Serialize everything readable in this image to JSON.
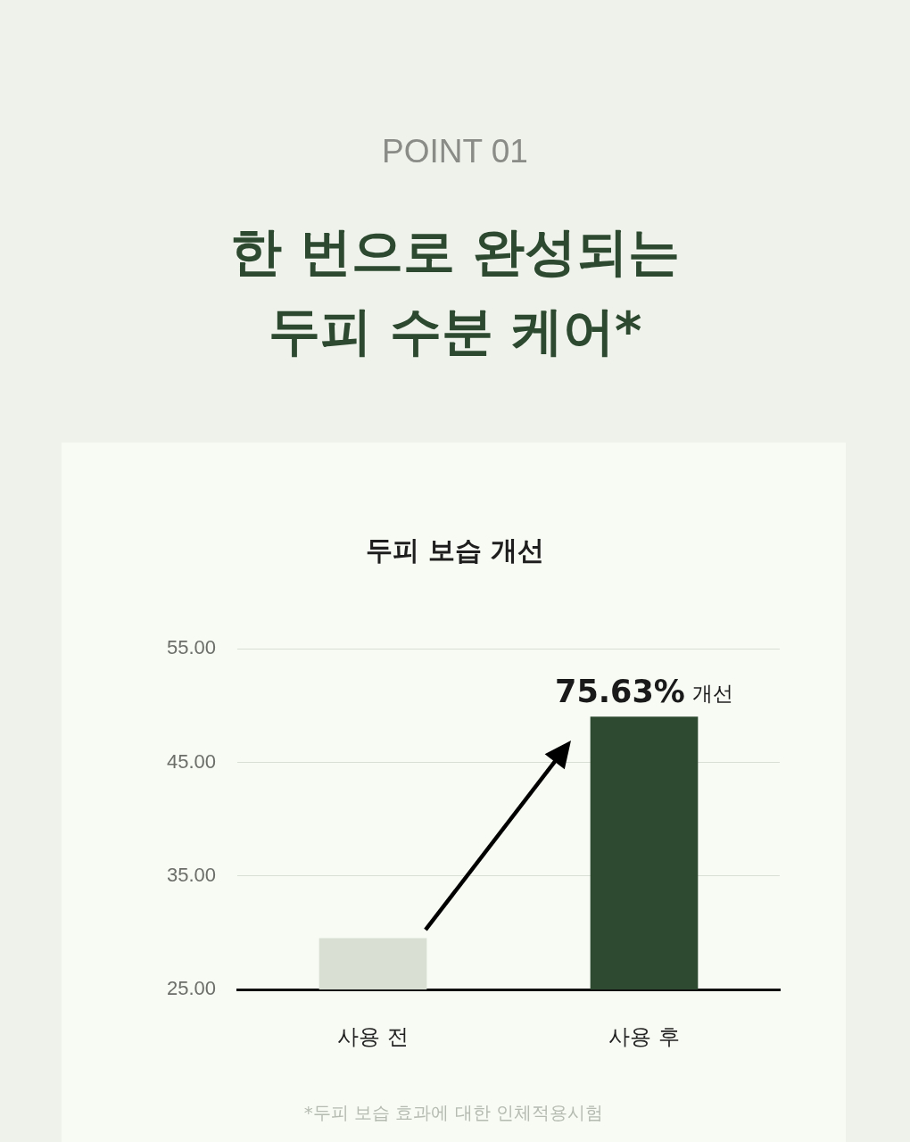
{
  "chart_data": {
    "type": "bar",
    "title": "한 번으로 완성되는 두피 수분 케어*",
    "subtitle": "두피 보습 개선",
    "categories": [
      "사용 전",
      "사용 후"
    ],
    "values": [
      29.5,
      49
    ],
    "colors": [
      "#dadfd4",
      "#2e4a31"
    ],
    "ylim": [
      25,
      55
    ],
    "yticks": [
      {
        "value": 25,
        "label": "25.00"
      },
      {
        "value": 35,
        "label": "35.00"
      },
      {
        "value": 45,
        "label": "45.00"
      },
      {
        "value": 55,
        "label": "55.00"
      }
    ],
    "grid": "y",
    "annotations": [
      "POINT 01",
      {
        "text": "75.63% 개선",
        "x": "사용 후",
        "y": 49
      },
      "*두피 보습 효과에 대한 인체적용시험"
    ]
  }
}
